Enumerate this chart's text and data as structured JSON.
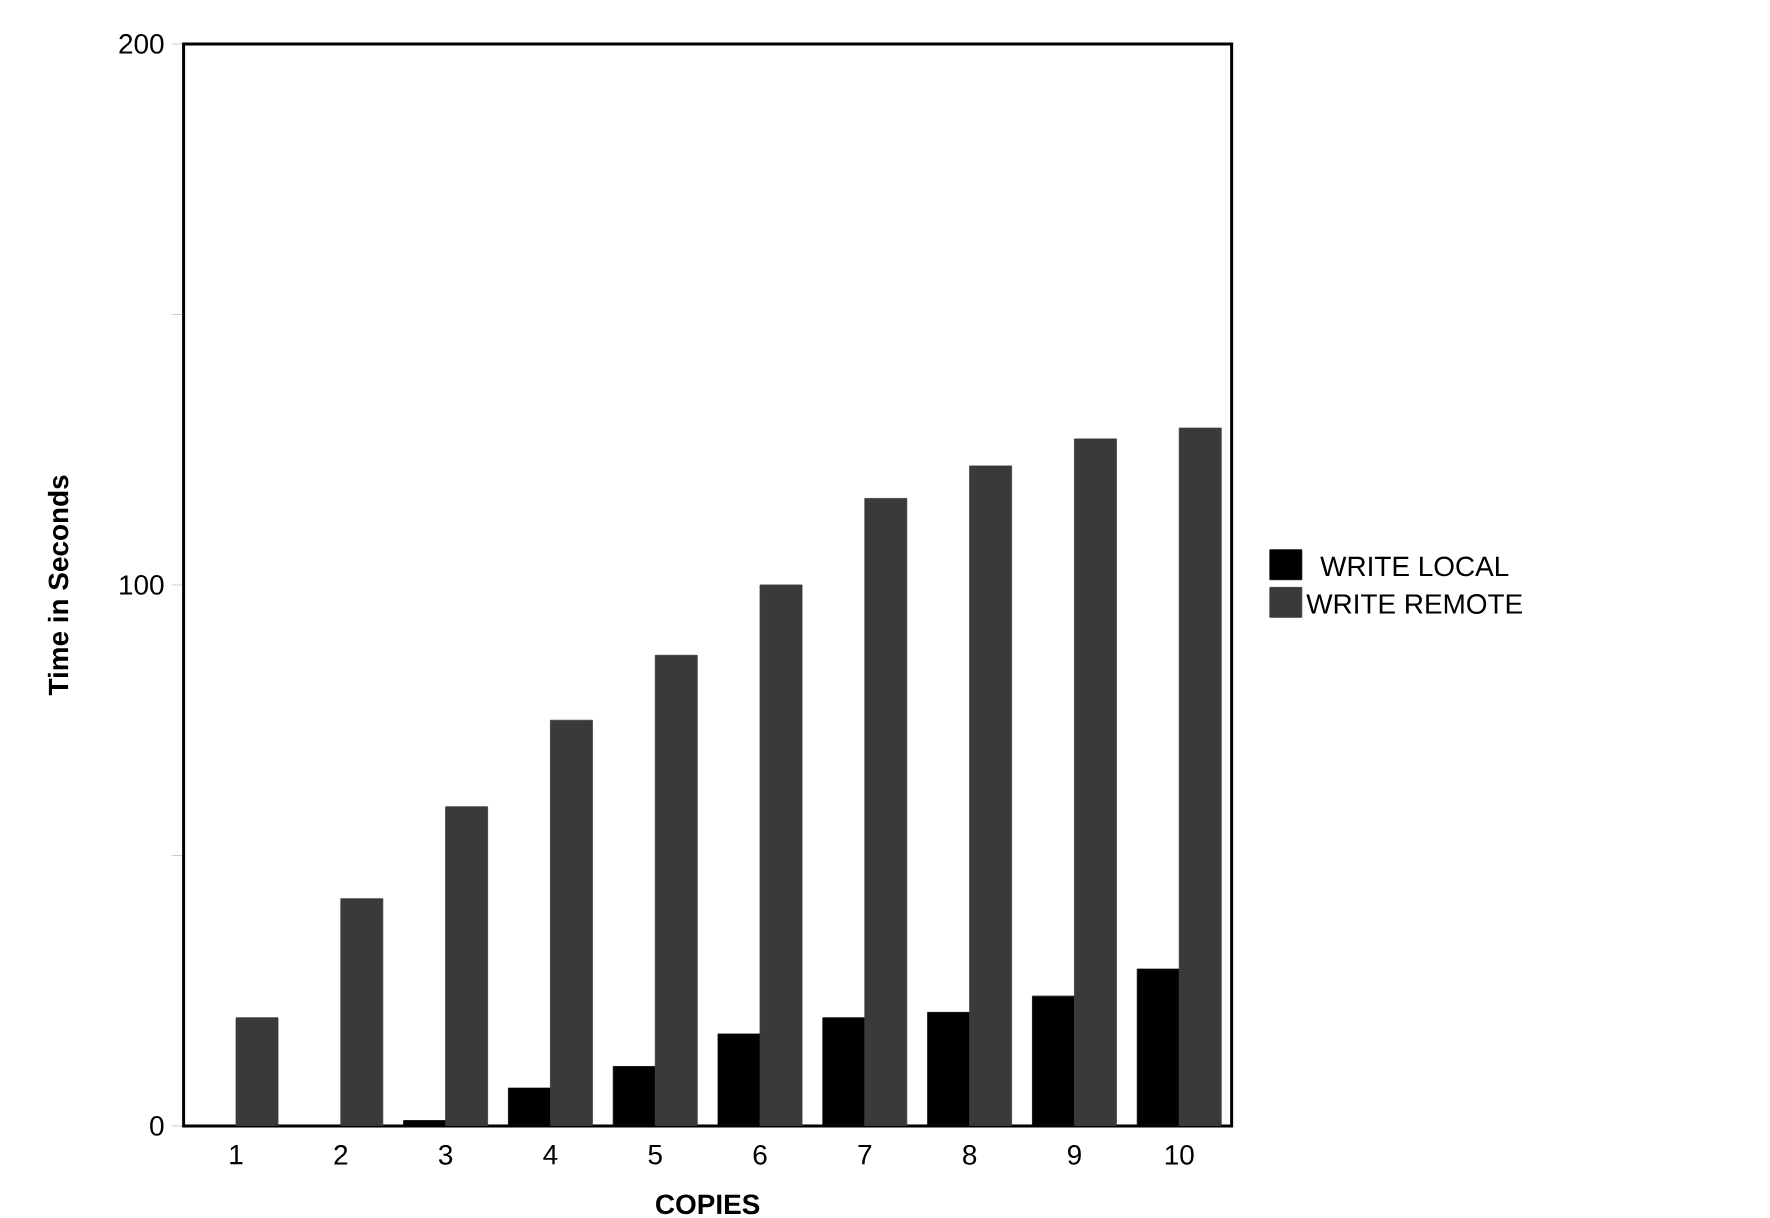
{
  "chart_data": {
    "type": "bar",
    "xlabel": "COPIES",
    "ylabel": "Time in Seconds",
    "categories": [
      "1",
      "2",
      "3",
      "4",
      "5",
      "6",
      "7",
      "8",
      "9",
      "10"
    ],
    "series": [
      {
        "name": "WRITE LOCAL",
        "color": "#000000",
        "values": [
          0,
          0,
          1,
          7,
          11,
          17,
          20,
          21,
          24,
          29
        ]
      },
      {
        "name": "WRITE REMOTE",
        "color": "#3a3a3a",
        "values": [
          20,
          42,
          59,
          75,
          87,
          100,
          116,
          122,
          127,
          129
        ]
      }
    ],
    "ylim": [
      0,
      200
    ],
    "yticks": [
      0,
      {
        "value": 50,
        "label": null
      },
      100,
      {
        "value": 150,
        "label": null
      },
      200
    ],
    "legend": "right",
    "grid": false
  }
}
